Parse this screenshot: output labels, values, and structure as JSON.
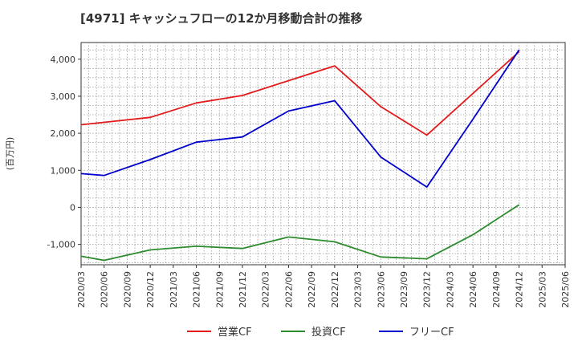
{
  "chart_data": {
    "type": "line",
    "title": "[4971]  キャッシュフローの12か月移動合計の推移",
    "ylabel": "(百万円)",
    "xlabel": "",
    "ylim": [
      -1550,
      4450
    ],
    "yticks": [
      -1000,
      0,
      1000,
      2000,
      3000,
      4000
    ],
    "ytick_labels": [
      "-1,000",
      "0",
      "1,000",
      "2,000",
      "3,000",
      "4,000"
    ],
    "categories": [
      "2020/03",
      "2020/06",
      "2020/09",
      "2020/12",
      "2021/03",
      "2021/06",
      "2021/09",
      "2021/12",
      "2022/03",
      "2022/06",
      "2022/09",
      "2022/12",
      "2023/03",
      "2023/06",
      "2023/09",
      "2023/12",
      "2024/03",
      "2024/06",
      "2024/09",
      "2024/12",
      "2025/03",
      "2025/06"
    ],
    "grid": true,
    "legend_position": "bottom",
    "series": [
      {
        "name": "営業CF",
        "color": "#e31a1c",
        "values": [
          2230,
          null,
          null,
          2430,
          null,
          2820,
          null,
          3020,
          null,
          null,
          null,
          3820,
          null,
          2720,
          null,
          1950,
          null,
          null,
          null,
          4200,
          null,
          null
        ]
      },
      {
        "name": "投資CF",
        "color": "#2e8b2e",
        "values": [
          -1320,
          -1430,
          null,
          -1150,
          null,
          -1050,
          null,
          -1110,
          null,
          -800,
          null,
          -930,
          null,
          -1340,
          null,
          -1390,
          null,
          -740,
          null,
          70,
          null,
          null
        ]
      },
      {
        "name": "フリーCF",
        "color": "#0000cc",
        "values": [
          910,
          860,
          null,
          1290,
          null,
          1760,
          null,
          1900,
          null,
          2600,
          null,
          2880,
          null,
          1360,
          null,
          550,
          null,
          2380,
          null,
          4250,
          null,
          null
        ]
      }
    ]
  }
}
